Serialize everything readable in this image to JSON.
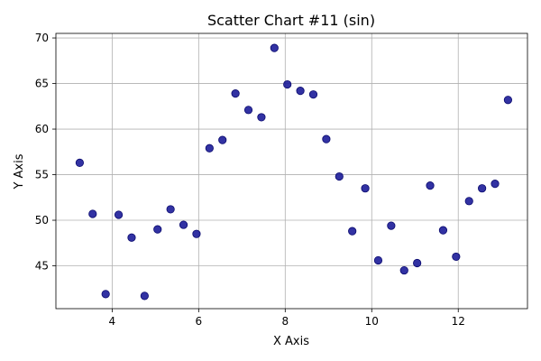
{
  "chart_data": {
    "type": "scatter",
    "title": "Scatter Chart #11 (sin)",
    "xlabel": "X Axis",
    "ylabel": "Y Axis",
    "xlim": [
      2.7,
      13.6
    ],
    "ylim": [
      40.3,
      70.5
    ],
    "xticks": [
      4,
      6,
      8,
      10,
      12
    ],
    "yticks": [
      45,
      50,
      55,
      60,
      65,
      70
    ],
    "grid": true,
    "marker_color": "#1c1c99",
    "marker_edge_color": "#0a0a6e",
    "points": [
      {
        "x": 3.25,
        "y": 56.3
      },
      {
        "x": 3.55,
        "y": 50.7
      },
      {
        "x": 3.85,
        "y": 41.9
      },
      {
        "x": 4.15,
        "y": 50.6
      },
      {
        "x": 4.45,
        "y": 48.1
      },
      {
        "x": 4.75,
        "y": 41.7
      },
      {
        "x": 5.05,
        "y": 49.0
      },
      {
        "x": 5.35,
        "y": 51.2
      },
      {
        "x": 5.65,
        "y": 49.5
      },
      {
        "x": 5.95,
        "y": 48.5
      },
      {
        "x": 6.25,
        "y": 57.9
      },
      {
        "x": 6.55,
        "y": 58.8
      },
      {
        "x": 6.85,
        "y": 63.9
      },
      {
        "x": 7.15,
        "y": 62.1
      },
      {
        "x": 7.45,
        "y": 61.3
      },
      {
        "x": 7.75,
        "y": 68.9
      },
      {
        "x": 8.05,
        "y": 64.9
      },
      {
        "x": 8.35,
        "y": 64.2
      },
      {
        "x": 8.65,
        "y": 63.8
      },
      {
        "x": 8.95,
        "y": 58.9
      },
      {
        "x": 9.25,
        "y": 54.8
      },
      {
        "x": 9.55,
        "y": 48.8
      },
      {
        "x": 9.85,
        "y": 53.5
      },
      {
        "x": 10.15,
        "y": 45.6
      },
      {
        "x": 10.45,
        "y": 49.4
      },
      {
        "x": 10.75,
        "y": 44.5
      },
      {
        "x": 11.05,
        "y": 45.3
      },
      {
        "x": 11.35,
        "y": 53.8
      },
      {
        "x": 11.65,
        "y": 48.9
      },
      {
        "x": 11.95,
        "y": 46.0
      },
      {
        "x": 12.25,
        "y": 52.1
      },
      {
        "x": 12.55,
        "y": 53.5
      },
      {
        "x": 12.85,
        "y": 54.0
      },
      {
        "x": 13.15,
        "y": 63.2
      }
    ]
  }
}
